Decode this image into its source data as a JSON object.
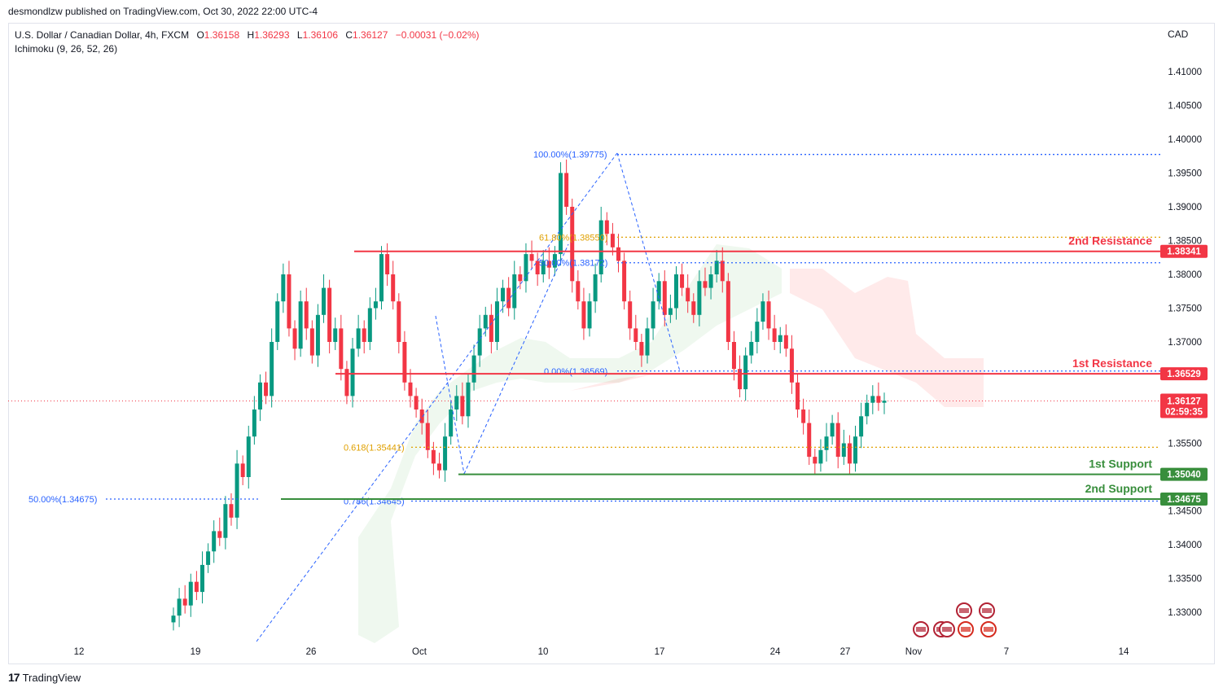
{
  "header": {
    "publish_line": "desmondlzw published on TradingView.com, Oct 30, 2022 22:00 UTC-4"
  },
  "legend": {
    "symbol": "U.S. Dollar / Canadian Dollar, 4h, FXCM",
    "open_label": "O",
    "open_value": "1.36158",
    "high_label": "H",
    "high_value": "1.36293",
    "low_label": "L",
    "low_value": "1.36106",
    "close_label": "C",
    "close_value": "1.36127",
    "change": "−0.00031 (−0.02%)",
    "indicator": "Ichimoku (9, 26, 52, 26)"
  },
  "currency": "CAD",
  "footer": {
    "logo": "17",
    "brand": "TradingView"
  },
  "colors": {
    "bull": "#089981",
    "bear": "#f23645",
    "resistance": "#f23645",
    "support": "#388e3c",
    "fib_blue": "#2962ff",
    "fib_orange": "#e0a000",
    "cloud_green": "#4caf50",
    "cloud_red": "#ff5252"
  },
  "icons": [
    "us-flag-event-icon",
    "canada-flag-event-icon"
  ],
  "chart_data": {
    "type": "candlestick",
    "symbol": "USD/CAD",
    "timeframe": "4h",
    "ylim": [
      1.328,
      1.415
    ],
    "y_ticks": [
      "1.41000",
      "1.40500",
      "1.40000",
      "1.39500",
      "1.39000",
      "1.38500",
      "1.38000",
      "1.37500",
      "1.37000",
      "1.36500",
      "1.35500",
      "1.34500",
      "1.34000",
      "1.33500",
      "1.33000"
    ],
    "x_ticks": [
      "12",
      "19",
      "26",
      "Oct",
      "10",
      "17",
      "24",
      "27",
      "Nov",
      "7",
      "14"
    ],
    "close_series": [
      1.3295,
      1.332,
      1.331,
      1.3345,
      1.333,
      1.337,
      1.339,
      1.342,
      1.341,
      1.346,
      1.344,
      1.352,
      1.35,
      1.356,
      1.36,
      1.364,
      1.362,
      1.37,
      1.376,
      1.38,
      1.372,
      1.369,
      1.376,
      1.372,
      1.368,
      1.374,
      1.378,
      1.37,
      1.372,
      1.366,
      1.362,
      1.369,
      1.372,
      1.37,
      1.375,
      1.376,
      1.383,
      1.38,
      1.376,
      1.37,
      1.364,
      1.362,
      1.36,
      1.358,
      1.354,
      1.352,
      1.351,
      1.356,
      1.36,
      1.362,
      1.359,
      1.364,
      1.368,
      1.372,
      1.374,
      1.37,
      1.376,
      1.378,
      1.375,
      1.38,
      1.379,
      1.383,
      1.382,
      1.38,
      1.382,
      1.381,
      1.383,
      1.395,
      1.39,
      1.379,
      1.376,
      1.372,
      1.376,
      1.38,
      1.388,
      1.386,
      1.384,
      1.382,
      1.376,
      1.372,
      1.37,
      1.368,
      1.372,
      1.376,
      1.379,
      1.374,
      1.375,
      1.38,
      1.378,
      1.376,
      1.374,
      1.379,
      1.378,
      1.38,
      1.382,
      1.379,
      1.37,
      1.366,
      1.363,
      1.368,
      1.37,
      1.373,
      1.376,
      1.372,
      1.37,
      1.371,
      1.369,
      1.364,
      1.36,
      1.358,
      1.353,
      1.352,
      1.354,
      1.356,
      1.358,
      1.353,
      1.355,
      1.352,
      1.356,
      1.359,
      1.361,
      1.362,
      1.361,
      1.3613
    ],
    "price_markers": [
      {
        "label": "2nd Resistance",
        "value": "1.38341",
        "color": "#f23645"
      },
      {
        "label": "1st Resistance",
        "value": "1.36529",
        "color": "#f23645"
      },
      {
        "label": "1st Support",
        "value": "1.35040",
        "color": "#388e3c"
      },
      {
        "label": "2nd Support",
        "value": "1.34675",
        "color": "#388e3c"
      }
    ],
    "last_price": {
      "value": "1.36127",
      "countdown": "02:59:35"
    },
    "fib_labels": [
      {
        "text": "100.00%(1.39775)",
        "value": 1.39775,
        "color": "#2962ff"
      },
      {
        "text": "61.80%(1.38550)",
        "value": 1.3855,
        "color": "#e0a000"
      },
      {
        "text": "50.00%(1.38172)",
        "value": 1.38172,
        "color": "#2962ff"
      },
      {
        "text": "0.00%(1.36569)",
        "value": 1.36569,
        "color": "#2962ff"
      },
      {
        "text": "0.618(1.35441)",
        "value": 1.35441,
        "color": "#e0a000"
      },
      {
        "text": "0.786(1.34645)",
        "value": 1.34645,
        "color": "#2962ff"
      },
      {
        "text": "50.00%(1.34675)",
        "value": 1.34675,
        "color": "#2962ff"
      }
    ]
  }
}
